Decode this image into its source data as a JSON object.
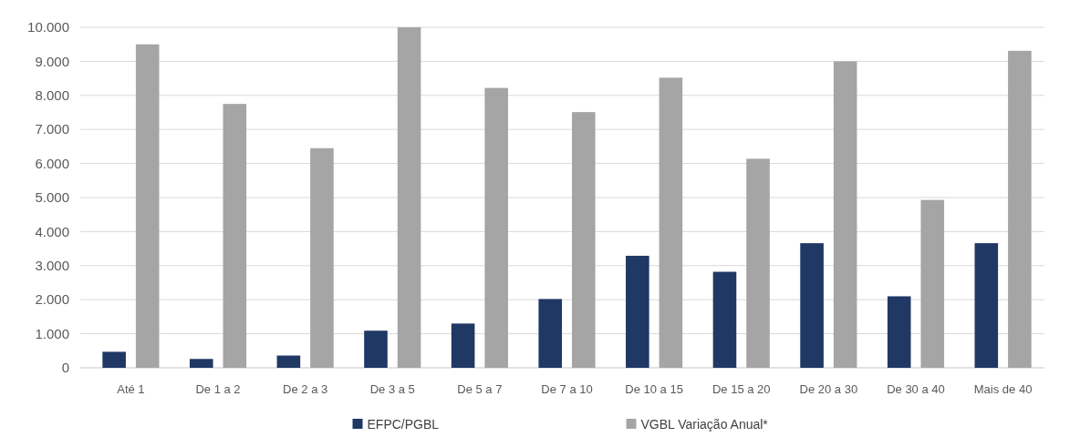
{
  "chart_data": {
    "type": "bar",
    "categories": [
      "Até 1",
      "De 1 a 2",
      "De 2 a 3",
      "De 3 a 5",
      "De 5 a 7",
      "De 7 a 10",
      "De 10 a 15",
      "De 15 a 20",
      "De 20 a 30",
      "De 30 a 40",
      "Mais de 40"
    ],
    "series": [
      {
        "name": "EFPC/PGBL",
        "color": "#203864",
        "values": [
          470,
          260,
          360,
          1090,
          1300,
          2020,
          3290,
          2820,
          3660,
          2100,
          3660
        ]
      },
      {
        "name": "VGBL Variação Anual*",
        "color": "#a5a5a5",
        "values": [
          9500,
          7750,
          6450,
          10000,
          8220,
          7510,
          8520,
          6140,
          9000,
          4930,
          9310
        ]
      }
    ],
    "ylim": [
      0,
      10000
    ],
    "yticks": [
      0,
      {
        "value": 1000,
        "label": "1.000"
      },
      {
        "value": 2000,
        "label": "2.000"
      },
      {
        "value": 3000,
        "label": "3.000"
      },
      {
        "value": 4000,
        "label": "4.000"
      },
      {
        "value": 5000,
        "label": "5.000"
      },
      {
        "value": 6000,
        "label": "6.000"
      },
      {
        "value": 7000,
        "label": "7.000"
      },
      {
        "value": 8000,
        "label": "8.000"
      },
      {
        "value": 9000,
        "label": "9.000"
      },
      {
        "value": 10000,
        "label": "10.000"
      }
    ],
    "grid": "y",
    "legend": "bottom"
  }
}
